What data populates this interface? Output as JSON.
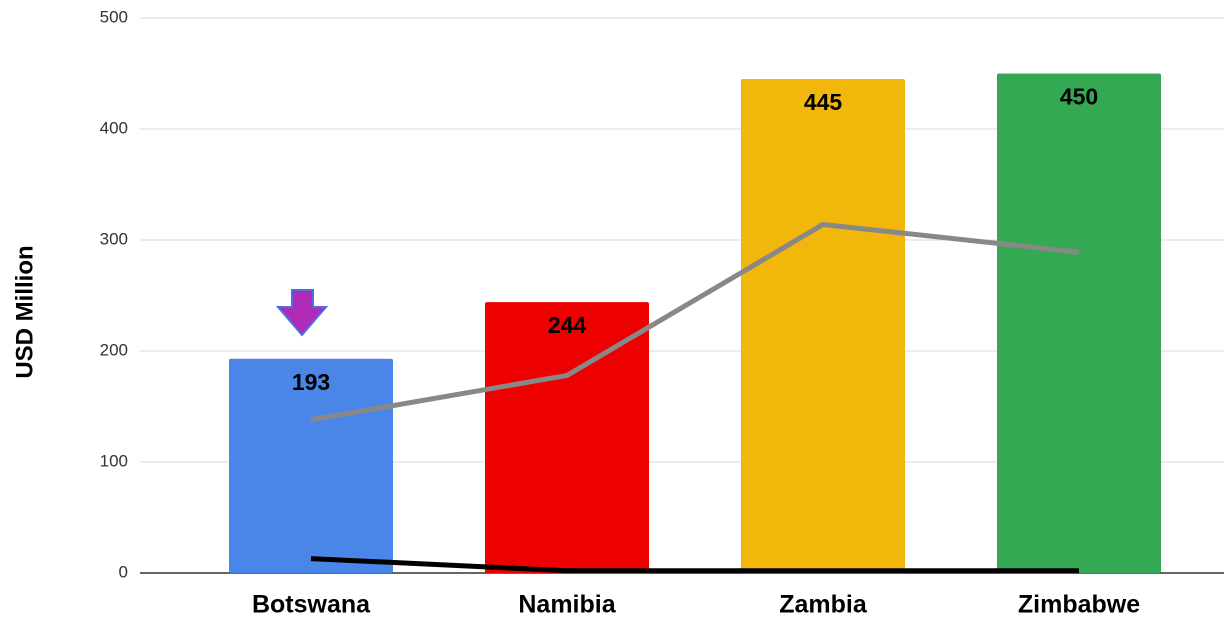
{
  "chart_data": {
    "type": "bar",
    "ylabel": "USD Million",
    "categories": [
      "Botswana",
      "Namibia",
      "Zambia",
      "Zimbabwe"
    ],
    "series": [
      {
        "type": "bar",
        "colors": [
          "#4a86e8",
          "#ec0000",
          "#f1b70a",
          "#34a853"
        ],
        "values": [
          193,
          244,
          445,
          450
        ]
      },
      {
        "type": "line",
        "color": "#888888",
        "values": [
          138,
          178,
          314,
          289
        ]
      },
      {
        "type": "line",
        "color": "#000000",
        "values": [
          13,
          2,
          2,
          2
        ]
      }
    ],
    "ylim": [
      0,
      500
    ],
    "yticks": [
      0,
      100,
      200,
      300,
      400,
      500
    ],
    "grid": true
  }
}
